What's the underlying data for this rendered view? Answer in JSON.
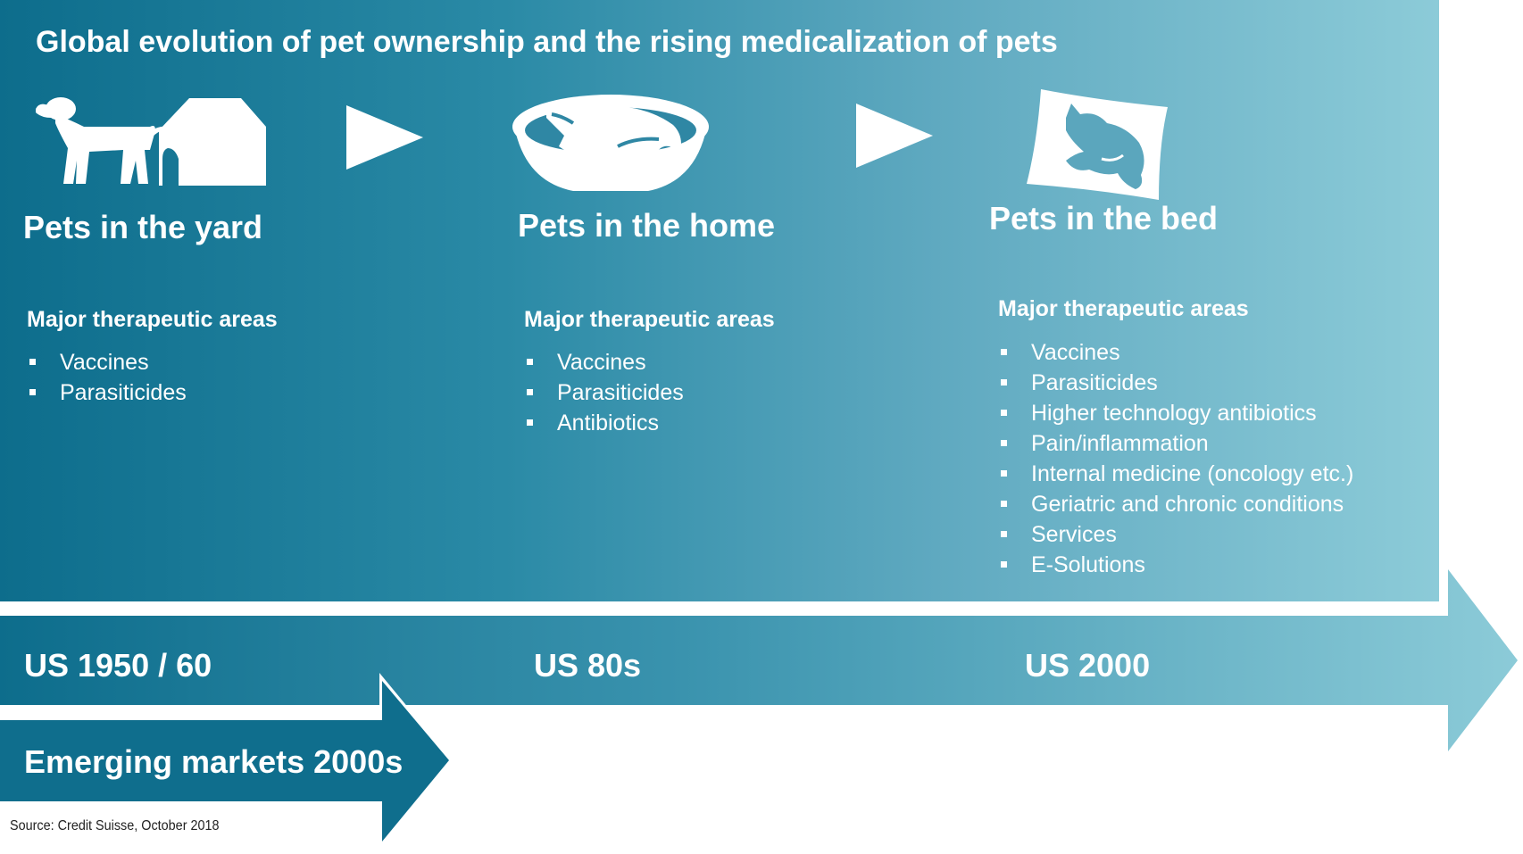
{
  "title": "Global evolution of pet ownership and the rising medicalization of pets",
  "colors": {
    "teal_dark": "#0d6d8c",
    "teal_light": "#8ccbd8",
    "text": "#ffffff"
  },
  "stages": [
    {
      "icon": "dog-and-kennel-icon",
      "title": "Pets in the yard",
      "areas_heading": "Major therapeutic areas",
      "areas": [
        "Vaccines",
        "Parasiticides"
      ]
    },
    {
      "icon": "pet-in-basket-icon",
      "title": "Pets in the home",
      "areas_heading": "Major therapeutic areas",
      "areas": [
        "Vaccines",
        "Parasiticides",
        "Antibiotics"
      ]
    },
    {
      "icon": "cat-on-pillow-icon",
      "title": "Pets in the bed",
      "areas_heading": "Major therapeutic areas",
      "areas": [
        "Vaccines",
        "Parasiticides",
        "Higher technology antibiotics",
        "Pain/inflammation",
        "Internal medicine (oncology etc.)",
        "Geriatric and chronic conditions",
        "Services",
        "E-Solutions"
      ]
    }
  ],
  "timeline": {
    "eras": [
      "US 1950 / 60",
      "US 80s",
      "US 2000"
    ],
    "emerging": "Emerging markets 2000s"
  },
  "source": "Source: Credit Suisse, October 2018"
}
